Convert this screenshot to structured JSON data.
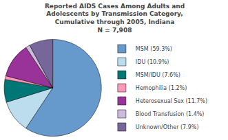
{
  "chart_data": {
    "type": "pie",
    "title": "Reported AIDS Cases Among Adults and\nAdolescents by Transmission Category,\nCumulative through 2005, Indiana\nN = 7,908",
    "categories": [
      "MSM (59.3%)",
      "IDU (10.9%)",
      "MSM/IDU (7.6%)",
      "Hemophilia (1.2%)",
      "Heterosexual Sex (11.7%)",
      "Blood Transfusion (1.4%)",
      "Unknown/Other (7.9%)"
    ],
    "values": [
      59.3,
      10.9,
      7.6,
      1.2,
      11.7,
      1.4,
      7.9
    ],
    "colors": [
      "#6699CC",
      "#BBDDEE",
      "#007777",
      "#FF99BB",
      "#993399",
      "#CCBBDD",
      "#776699"
    ],
    "legend": "right"
  }
}
